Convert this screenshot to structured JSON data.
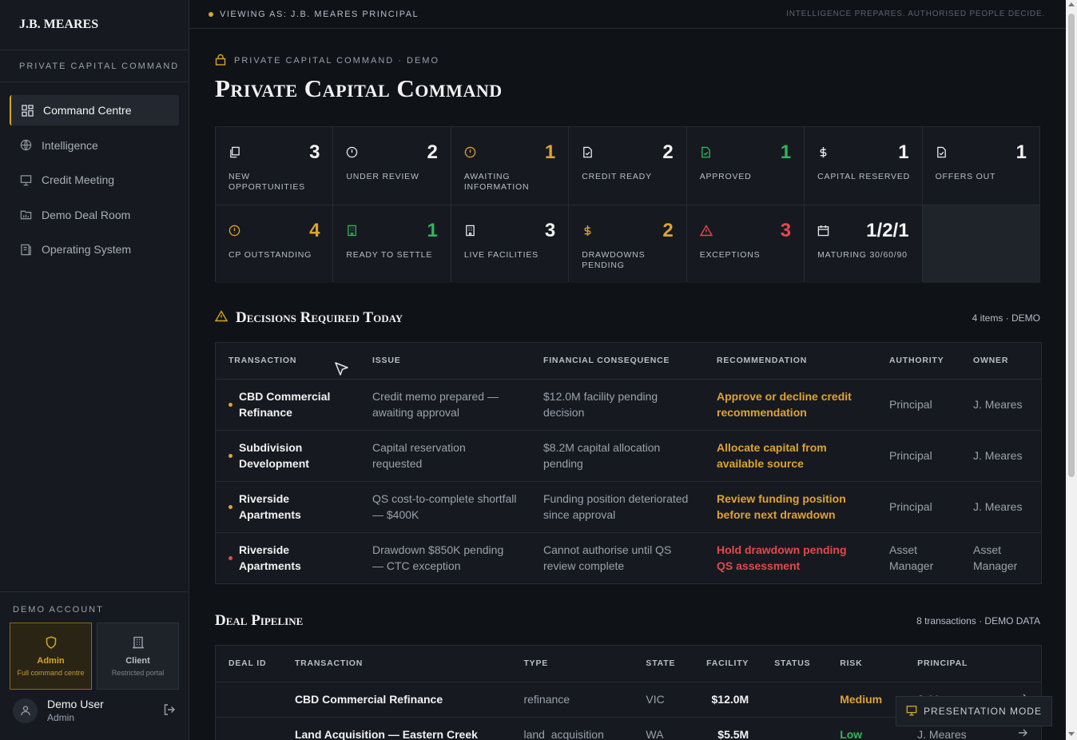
{
  "brand": "J.B. MEARES",
  "brand_subtitle": "PRIVATE CAPITAL COMMAND",
  "nav": [
    {
      "label": "Command Centre",
      "icon": "grid-icon",
      "active": true
    },
    {
      "label": "Intelligence",
      "icon": "globe-icon"
    },
    {
      "label": "Credit Meeting",
      "icon": "monitor-icon"
    },
    {
      "label": "Demo Deal Room",
      "icon": "folder-icon"
    },
    {
      "label": "Operating System",
      "icon": "book-icon"
    }
  ],
  "account": {
    "title": "DEMO ACCOUNT",
    "roles": [
      {
        "name": "Admin",
        "desc": "Full command centre",
        "icon": "shield-icon",
        "active": true
      },
      {
        "name": "Client",
        "desc": "Restricted portal",
        "icon": "building-icon"
      }
    ],
    "user_name": "Demo User",
    "user_role": "Admin"
  },
  "topbar": {
    "viewing": "VIEWING AS: J.B. MEARES PRINCIPAL",
    "tagline": "INTELLIGENCE PREPARES. AUTHORISED PEOPLE DECIDE."
  },
  "header": {
    "eyebrow": "PRIVATE CAPITAL COMMAND · DEMO",
    "title": "Private Capital Command"
  },
  "kpis": [
    {
      "label": "NEW OPPORTUNITIES",
      "value": "3",
      "color": "#f2f2f2",
      "icon": "copy-icon"
    },
    {
      "label": "UNDER REVIEW",
      "value": "2",
      "color": "#f2f2f2",
      "icon": "clock-icon"
    },
    {
      "label": "AWAITING INFORMATION",
      "value": "1",
      "color": "#e0a233",
      "icon": "alert-circle-icon"
    },
    {
      "label": "CREDIT READY",
      "value": "2",
      "color": "#f2f2f2",
      "icon": "file-check-icon"
    },
    {
      "label": "APPROVED",
      "value": "1",
      "color": "#34b35a",
      "icon": "file-check-icon"
    },
    {
      "label": "CAPITAL RESERVED",
      "value": "1",
      "color": "#f2f2f2",
      "icon": "dollar-icon"
    },
    {
      "label": "OFFERS OUT",
      "value": "1",
      "color": "#f2f2f2",
      "icon": "file-icon"
    },
    {
      "label": "CP OUTSTANDING",
      "value": "4",
      "color": "#e0a233",
      "icon": "alert-circle-icon"
    },
    {
      "label": "READY TO SETTLE",
      "value": "1",
      "color": "#34b35a",
      "icon": "building-icon"
    },
    {
      "label": "LIVE FACILITIES",
      "value": "3",
      "color": "#f2f2f2",
      "icon": "building-icon"
    },
    {
      "label": "DRAWDOWNS PENDING",
      "value": "2",
      "color": "#e0a233",
      "icon": "dollar-icon"
    },
    {
      "label": "EXCEPTIONS",
      "value": "3",
      "color": "#e5484d",
      "icon": "warning-icon"
    },
    {
      "label": "MATURING 30/60/90",
      "value": "1/2/1",
      "color": "#f2f2f2",
      "icon": "calendar-icon"
    }
  ],
  "decisions": {
    "title": "Decisions Required Today",
    "meta": "4 items · DEMO",
    "columns": [
      "TRANSACTION",
      "ISSUE",
      "FINANCIAL CONSEQUENCE",
      "RECOMMENDATION",
      "AUTHORITY",
      "OWNER"
    ],
    "rows": [
      {
        "transaction": "CBD Commercial Refinance",
        "issue": "Credit memo prepared — awaiting approval",
        "consequence": "$12.0M facility pending decision",
        "recommendation": "Approve or decline credit recommendation",
        "authority": "Principal",
        "owner": "J. Meares",
        "color": "#e0a233"
      },
      {
        "transaction": "Subdivision Development",
        "issue": "Capital reservation requested",
        "consequence": "$8.2M capital allocation pending",
        "recommendation": "Allocate capital from available source",
        "authority": "Principal",
        "owner": "J. Meares",
        "color": "#e0a233"
      },
      {
        "transaction": "Riverside Apartments",
        "issue": "QS cost-to-complete shortfall — $400K",
        "consequence": "Funding position deteriorated since approval",
        "recommendation": "Review funding position before next drawdown",
        "authority": "Principal",
        "owner": "J. Meares",
        "color": "#e0a233"
      },
      {
        "transaction": "Riverside Apartments",
        "issue": "Drawdown $850K pending — CTC exception",
        "consequence": "Cannot authorise until QS review complete",
        "recommendation": "Hold drawdown pending QS assessment",
        "authority": "Asset Manager",
        "owner": "Asset Manager",
        "color": "#e5484d"
      }
    ]
  },
  "pipeline": {
    "title": "Deal Pipeline",
    "meta": "8 transactions · DEMO DATA",
    "columns": [
      "DEAL ID",
      "TRANSACTION",
      "TYPE",
      "STATE",
      "FACILITY",
      "STATUS",
      "RISK",
      "PRINCIPAL"
    ],
    "rows": [
      {
        "deal_id": "",
        "transaction": "CBD Commercial Refinance",
        "type": "refinance",
        "state": "VIC",
        "facility": "$12.0M",
        "status": "",
        "risk": "Medium",
        "risk_color": "#e0a233",
        "principal": "J. Meares"
      },
      {
        "deal_id": "",
        "transaction": "Land Acquisition — Eastern Creek",
        "type": "land_acquisition",
        "state": "WA",
        "facility": "$5.5M",
        "status": "",
        "risk": "Low",
        "risk_color": "#34b35a",
        "principal": "J. Meares"
      }
    ]
  },
  "presentation_mode": "PRESENTATION MODE"
}
